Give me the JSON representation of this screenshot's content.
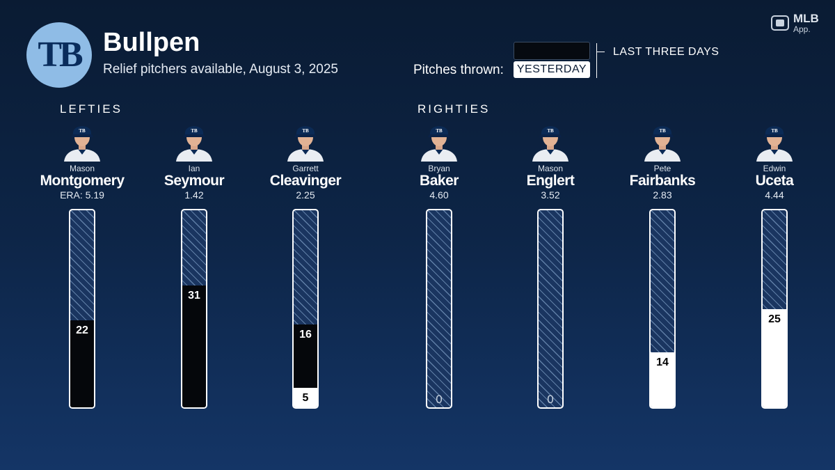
{
  "header": {
    "logo_text": "TB",
    "title": "Bullpen",
    "subtitle": "Relief pitchers available, August 3, 2025",
    "mlb_brand": "MLB",
    "mlb_sub": "App."
  },
  "legend": {
    "prefix": "Pitches thrown:",
    "yesterday": "YESTERDAY",
    "last_three": "LAST THREE DAYS"
  },
  "groups": {
    "lefties": "LEFTIES",
    "righties": "RIGHTIES"
  },
  "players": [
    {
      "first": "Mason",
      "last": "Montgomery",
      "era": "ERA: 5.19"
    },
    {
      "first": "Ian",
      "last": "Seymour",
      "era": "1.42"
    },
    {
      "first": "Garrett",
      "last": "Cleavinger",
      "era": "2.25"
    },
    {
      "first": "Bryan",
      "last": "Baker",
      "era": "4.60"
    },
    {
      "first": "Mason",
      "last": "Englert",
      "era": "3.52"
    },
    {
      "first": "Pete",
      "last": "Fairbanks",
      "era": "2.83"
    },
    {
      "first": "Edwin",
      "last": "Uceta",
      "era": "4.44"
    }
  ],
  "colors": {
    "background": "#0d2547",
    "logo": "#8fbce6",
    "last_three_days": "#05070b",
    "yesterday": "#ffffff",
    "remaining": "#1a3560"
  },
  "chart_data": {
    "type": "bar",
    "stacked": true,
    "ylim": [
      0,
      50
    ],
    "categories": [
      "Montgomery",
      "Seymour",
      "Cleavinger",
      "Baker",
      "Englert",
      "Fairbanks",
      "Uceta"
    ],
    "series": [
      {
        "name": "YESTERDAY",
        "values": [
          0,
          0,
          5,
          0,
          0,
          14,
          25
        ]
      },
      {
        "name": "LAST THREE DAYS",
        "values": [
          22,
          31,
          16,
          0,
          0,
          0,
          0
        ]
      }
    ],
    "labels": [
      "22",
      "31",
      "16 / 5",
      "0",
      "0",
      "14",
      "25"
    ]
  }
}
